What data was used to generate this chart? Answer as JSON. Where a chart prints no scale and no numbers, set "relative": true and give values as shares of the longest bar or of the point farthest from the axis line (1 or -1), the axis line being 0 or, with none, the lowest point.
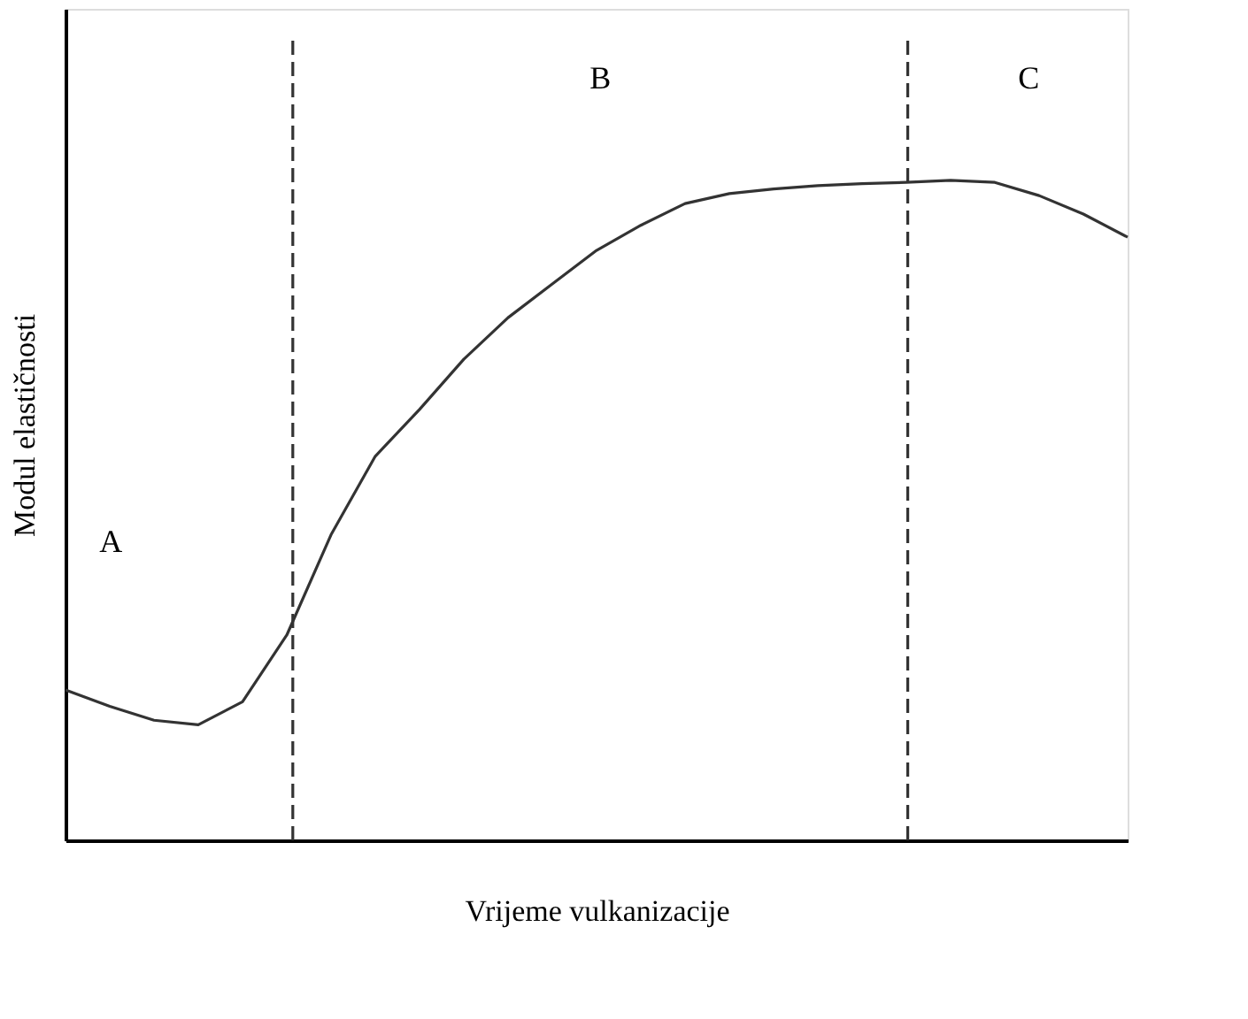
{
  "chart_data": {
    "type": "line",
    "relative": true,
    "xlabel": "Vrijeme vulkanizacije",
    "ylabel": "Modul elastičnosti",
    "grid": false,
    "marker": "none",
    "line_style": "solid",
    "categories": [
      null,
      null,
      null,
      null,
      null,
      null,
      null,
      null,
      null,
      null,
      null,
      null,
      null,
      null,
      null,
      null,
      null,
      null,
      null,
      null,
      null,
      null,
      null,
      null,
      null
    ],
    "series": [
      {
        "color": "#333333",
        "values": [
          0.228,
          0.203,
          0.182,
          0.175,
          0.21,
          0.311,
          0.463,
          0.582,
          0.653,
          0.729,
          0.792,
          0.843,
          0.894,
          0.932,
          0.965,
          0.98,
          0.987,
          0.992,
          0.995,
          0.997,
          1,
          0.997,
          0.977,
          0.949,
          0.914
        ]
      }
    ],
    "annotations": [
      "A",
      "B",
      "C"
    ]
  }
}
